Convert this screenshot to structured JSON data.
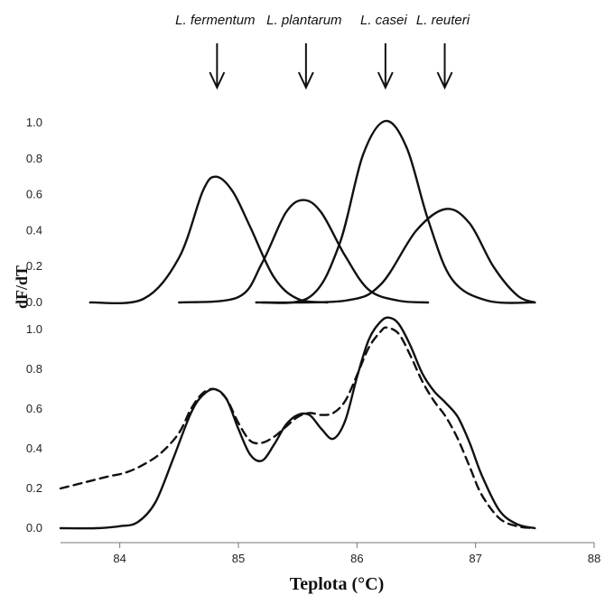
{
  "chart_data": [
    {
      "type": "line",
      "panel": "top",
      "ylabel": "dF/dT",
      "ylim": [
        0.0,
        1.0
      ],
      "yticks": [
        "0.0",
        "0.2",
        "0.4",
        "0.6",
        "0.8",
        "1.0"
      ],
      "annotations": [
        "L. fermentum",
        "L. plantarum",
        "L. casei",
        "L. reuteri"
      ],
      "annotation_x": [
        84.82,
        85.57,
        86.24,
        86.74
      ],
      "series": [
        {
          "name": "L. fermentum",
          "peak_x": 84.81,
          "peak_y": 0.7,
          "x_range": [
            83.75,
            85.75
          ],
          "x": [
            83.75,
            84.2,
            84.5,
            84.7,
            84.81,
            84.95,
            85.1,
            85.3,
            85.5,
            85.75
          ],
          "y": [
            0.0,
            0.02,
            0.25,
            0.62,
            0.7,
            0.62,
            0.42,
            0.14,
            0.02,
            0.0
          ]
        },
        {
          "name": "L. plantarum",
          "peak_x": 85.55,
          "peak_y": 0.57,
          "x_range": [
            84.5,
            86.6
          ],
          "x": [
            84.5,
            85.0,
            85.2,
            85.4,
            85.55,
            85.7,
            85.9,
            86.1,
            86.35,
            86.6
          ],
          "y": [
            0.0,
            0.03,
            0.22,
            0.5,
            0.57,
            0.5,
            0.26,
            0.07,
            0.01,
            0.0
          ]
        },
        {
          "name": "L. casei",
          "peak_x": 86.24,
          "peak_y": 1.01,
          "x_range": [
            85.15,
            87.5
          ],
          "x": [
            85.15,
            85.6,
            85.85,
            86.05,
            86.24,
            86.42,
            86.6,
            86.8,
            87.1,
            87.5
          ],
          "y": [
            0.0,
            0.03,
            0.32,
            0.82,
            1.01,
            0.86,
            0.46,
            0.13,
            0.01,
            0.0
          ]
        },
        {
          "name": "L. reuteri",
          "peak_x": 86.75,
          "peak_y": 0.52,
          "x_range": [
            85.2,
            87.5
          ],
          "x": [
            85.2,
            85.9,
            86.2,
            86.5,
            86.75,
            86.95,
            87.15,
            87.35,
            87.5
          ],
          "y": [
            0.0,
            0.01,
            0.1,
            0.4,
            0.52,
            0.44,
            0.2,
            0.04,
            0.0
          ]
        }
      ]
    },
    {
      "type": "line",
      "panel": "bottom",
      "xlabel": "Teplota (°C)",
      "xlim": [
        83.5,
        88.0
      ],
      "xticks": [
        "84",
        "85",
        "86",
        "87",
        "88"
      ],
      "ylim": [
        0.0,
        1.0
      ],
      "yticks": [
        "0.0",
        "0.2",
        "0.4",
        "0.6",
        "0.8",
        "1.0"
      ],
      "series": [
        {
          "style": "solid",
          "x": [
            83.5,
            83.8,
            84.0,
            84.15,
            84.3,
            84.45,
            84.6,
            84.7,
            84.8,
            84.9,
            85.0,
            85.1,
            85.2,
            85.3,
            85.4,
            85.5,
            85.6,
            85.7,
            85.8,
            85.9,
            86.0,
            86.1,
            86.2,
            86.27,
            86.35,
            86.45,
            86.55,
            86.65,
            86.75,
            86.85,
            86.95,
            87.05,
            87.2,
            87.35,
            87.5
          ],
          "y": [
            0.0,
            0.0,
            0.01,
            0.03,
            0.13,
            0.35,
            0.58,
            0.67,
            0.7,
            0.65,
            0.5,
            0.37,
            0.34,
            0.42,
            0.52,
            0.57,
            0.57,
            0.5,
            0.45,
            0.54,
            0.76,
            0.95,
            1.04,
            1.06,
            1.03,
            0.92,
            0.78,
            0.69,
            0.63,
            0.56,
            0.43,
            0.27,
            0.09,
            0.02,
            0.0
          ]
        },
        {
          "style": "dashed",
          "x": [
            83.5,
            83.7,
            83.9,
            84.05,
            84.2,
            84.35,
            84.5,
            84.6,
            84.7,
            84.8,
            84.9,
            85.0,
            85.1,
            85.2,
            85.3,
            85.4,
            85.5,
            85.6,
            85.7,
            85.8,
            85.9,
            86.0,
            86.1,
            86.2,
            86.25,
            86.35,
            86.45,
            86.55,
            86.65,
            86.75,
            86.85,
            86.95,
            87.05,
            87.2,
            87.35,
            87.5
          ],
          "y": [
            0.2,
            0.23,
            0.26,
            0.28,
            0.32,
            0.38,
            0.48,
            0.6,
            0.68,
            0.7,
            0.65,
            0.53,
            0.44,
            0.43,
            0.46,
            0.51,
            0.56,
            0.58,
            0.57,
            0.58,
            0.64,
            0.77,
            0.91,
            0.99,
            1.01,
            0.98,
            0.87,
            0.74,
            0.64,
            0.56,
            0.45,
            0.31,
            0.17,
            0.05,
            0.01,
            0.0
          ]
        }
      ]
    }
  ]
}
